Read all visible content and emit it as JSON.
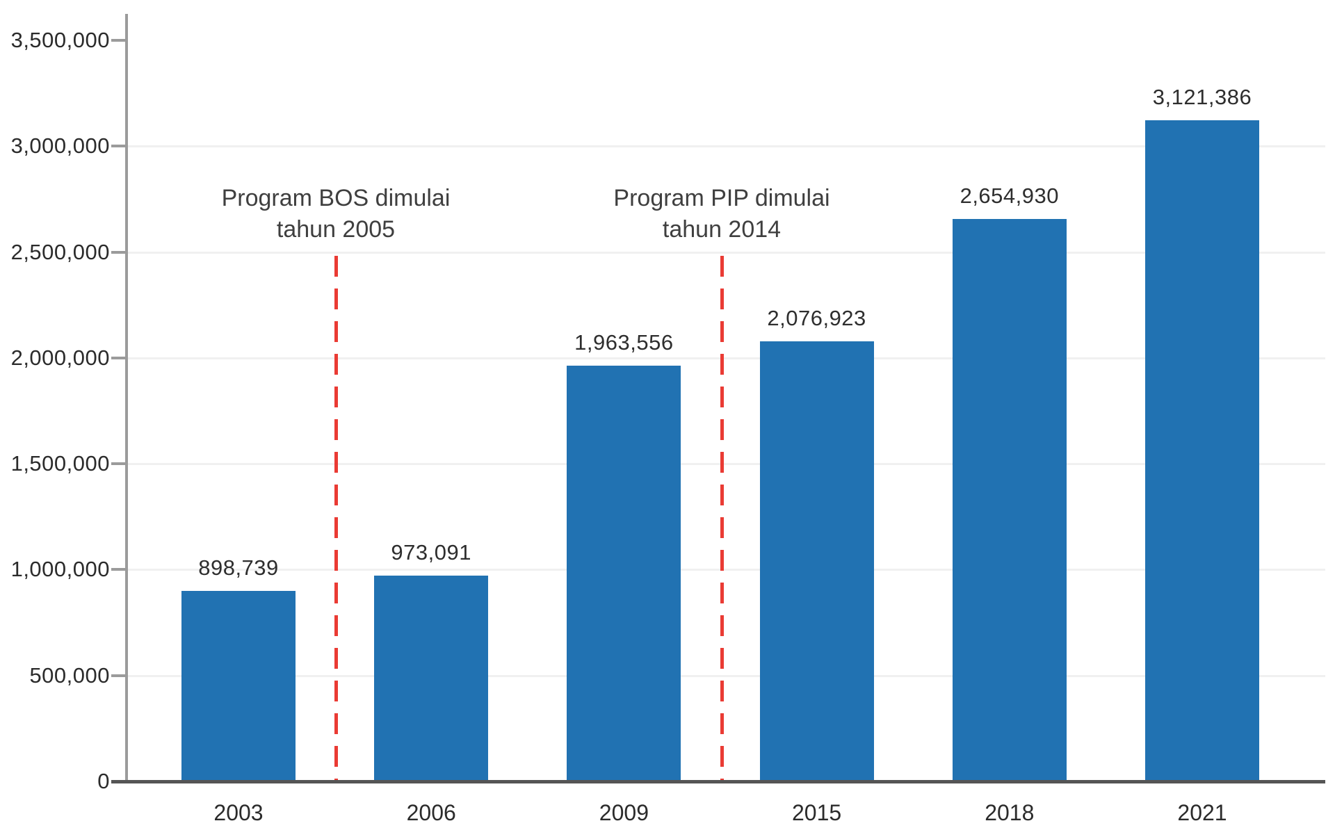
{
  "chart_data": {
    "type": "bar",
    "categories": [
      "2003",
      "2006",
      "2009",
      "2015",
      "2018",
      "2021"
    ],
    "values": [
      898739,
      973091,
      1963556,
      2076923,
      2654930,
      3121386
    ],
    "value_labels": [
      "898,739",
      "973,091",
      "1,963,556",
      "2,076,923",
      "2,654,930",
      "3,121,386"
    ],
    "title": "",
    "xlabel": "",
    "ylabel": "",
    "ylim": [
      0,
      3670000
    ],
    "ytick_step": 500000,
    "yticks": [
      0,
      500000,
      1000000,
      1500000,
      2000000,
      2500000,
      3000000,
      3500000
    ],
    "ytick_labels": [
      "0",
      "500,000",
      "1,000,000",
      "1,500,000",
      "2,000,000",
      "2,500,000",
      "3,000,000",
      "3,500,000"
    ],
    "grid": true,
    "legend": "none",
    "annotations": [
      {
        "marker_year": "2005",
        "between": [
          "2003",
          "2006"
        ],
        "lines": [
          "Program BOS dimulai",
          "tahun 2005"
        ],
        "line_style": "dashed",
        "line_color": "#ea3b34"
      },
      {
        "marker_year": "2014",
        "between": [
          "2009",
          "2015"
        ],
        "lines": [
          "Program PIP dimulai",
          "tahun 2014"
        ],
        "line_style": "dashed",
        "line_color": "#ea3b34"
      }
    ]
  },
  "colors": {
    "background": "#ffffff",
    "bar": "#2172b2",
    "annotation_line": "#ea3b34",
    "annotation_text": "#3f3f3f",
    "grid": "#f0f0f0",
    "y_axis": "#9b9b9b",
    "x_axis": "#555555",
    "tick_text": "#2b2b2b",
    "value_text": "#2e2e2e"
  }
}
